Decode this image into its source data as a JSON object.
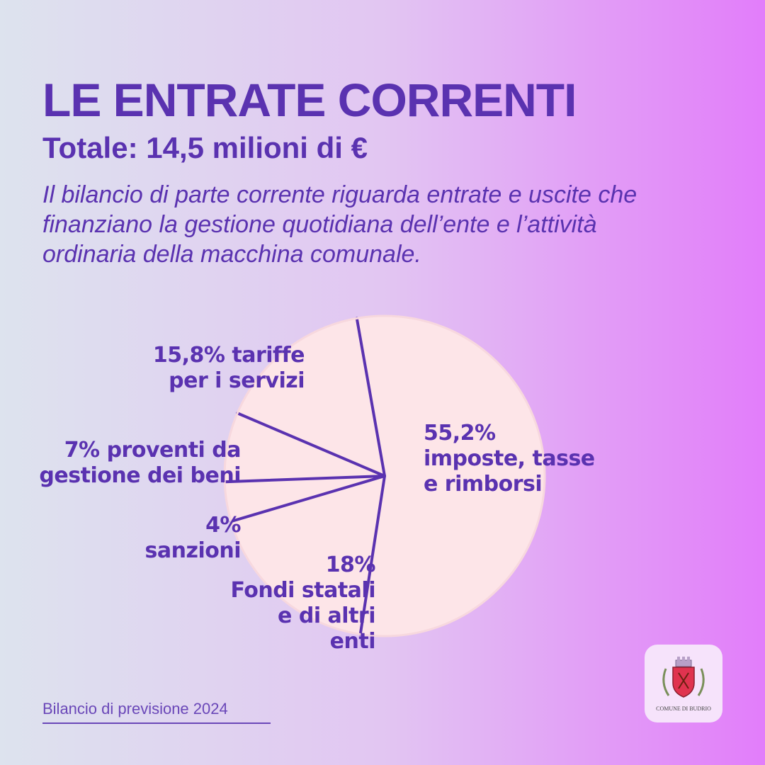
{
  "header": {
    "title": "LE ENTRATE CORRENTI",
    "subtitle": "Totale: 14,5 milioni di €",
    "description": "Il bilancio di parte corrente riguarda entrate e uscite che finanziano la gestione quotidiana dell’ente e l’attività ordinaria della macchina comunale."
  },
  "chart_data": {
    "type": "pie",
    "slices": [
      {
        "value": 55.2,
        "label_lines": [
          "55,2%",
          "imposte, tasse",
          "e rimborsi"
        ]
      },
      {
        "value": 18,
        "label_lines": [
          "18%",
          "Fondi statali",
          "e di altri",
          "enti"
        ]
      },
      {
        "value": 4,
        "label_lines": [
          "4%",
          "sanzioni"
        ]
      },
      {
        "value": 7,
        "label_lines": [
          "7% proventi da",
          "gestione dei beni"
        ]
      },
      {
        "value": 15.8,
        "label_lines": [
          "15,8% tariffe",
          "per i servizi"
        ]
      }
    ],
    "colors": {
      "fill": "#fde5e8",
      "line": "#5a32b0",
      "text": "#5a32b0"
    }
  },
  "footer": {
    "label": "Bilancio di previsione 2024"
  },
  "logo": {
    "caption": "COMUNE DI BUDRIO",
    "icon": "coat-of-arms-icon"
  }
}
